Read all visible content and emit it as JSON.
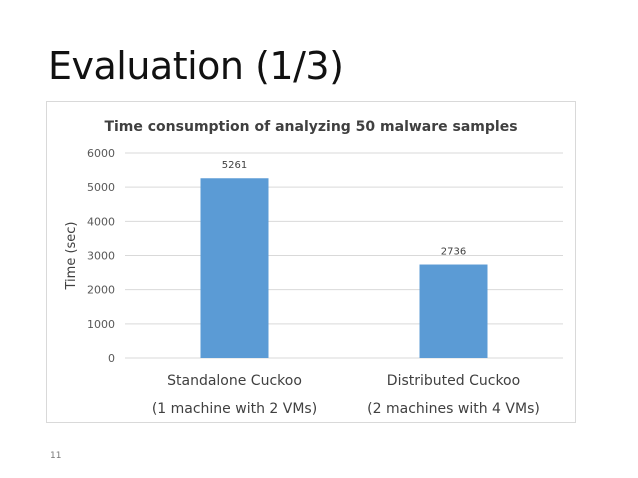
{
  "slide": {
    "title": "Evaluation (1/3)",
    "page_number": "11"
  },
  "chart_data": {
    "type": "bar",
    "title": "Time consumption of analyzing 50 malware samples",
    "xlabel": "",
    "ylabel": "Time (sec)",
    "categories": [
      [
        "Standalone Cuckoo",
        "(1 machine with 2 VMs)"
      ],
      [
        "Distributed Cuckoo",
        "(2 machines with 4 VMs)"
      ]
    ],
    "values": [
      5261,
      2736
    ],
    "data_labels": [
      "5261",
      "2736"
    ],
    "ylim": [
      0,
      6000
    ],
    "yticks": [
      0,
      1000,
      2000,
      3000,
      4000,
      5000,
      6000
    ],
    "grid": true,
    "legend": "none",
    "bar_color": "#5b9bd5",
    "grid_color": "#d9d9d9"
  }
}
